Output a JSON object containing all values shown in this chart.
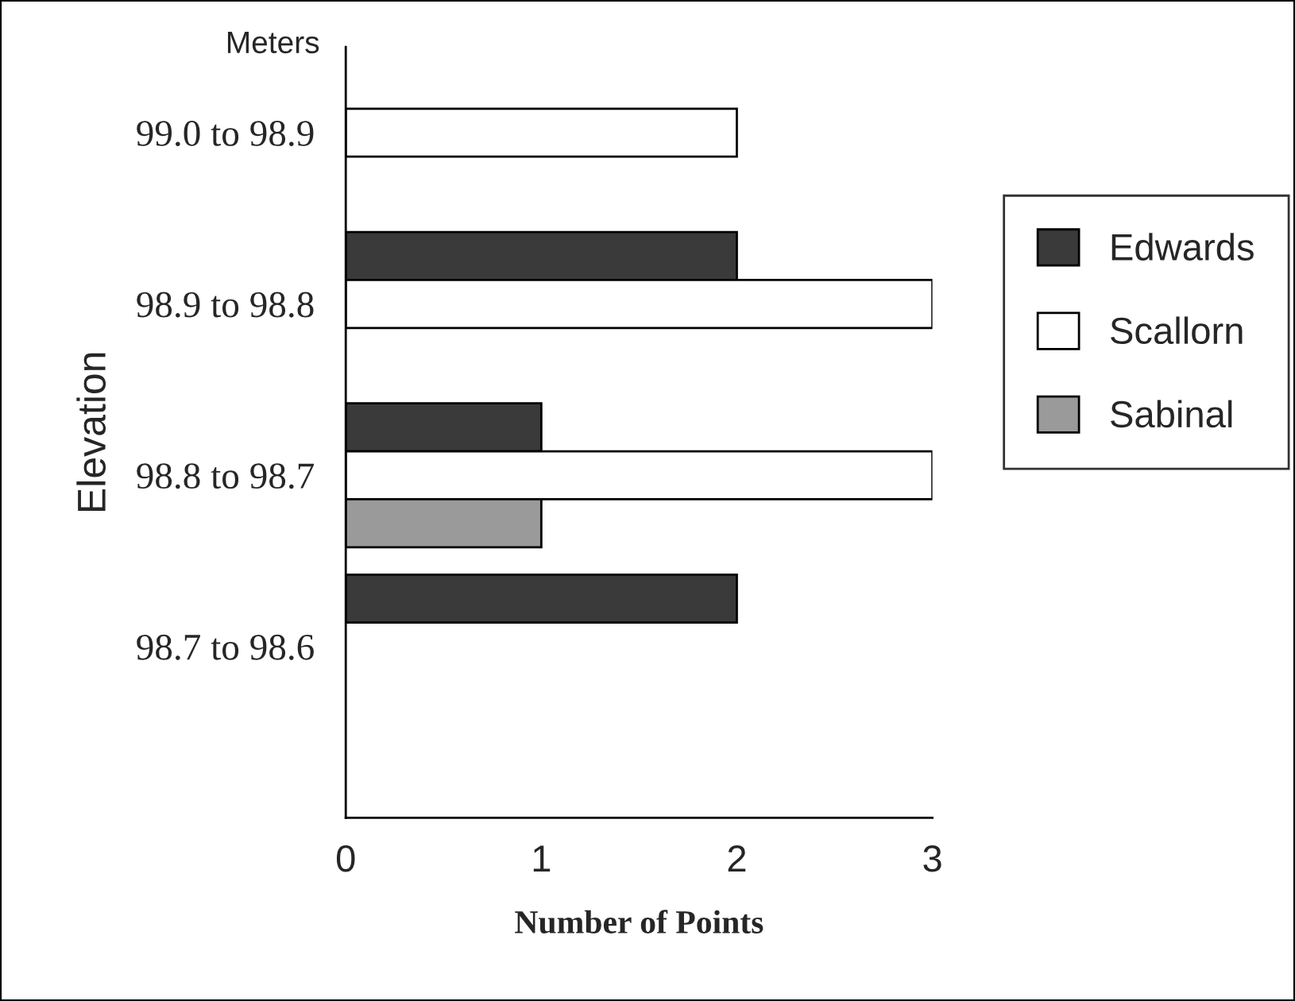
{
  "chart_data": {
    "type": "bar",
    "orientation": "horizontal",
    "xlabel": "Number of Points",
    "ylabel": "Elevation",
    "annotations": [
      "Meters"
    ],
    "categories": [
      "99.0 to 98.9",
      "98.9 to 98.8",
      "98.8 to 98.7",
      "98.7 to 98.6"
    ],
    "series": [
      {
        "name": "Edwards",
        "color": "#3a3a3a",
        "values": [
          null,
          2,
          1,
          2
        ]
      },
      {
        "name": "Scallorn",
        "color": "#ffffff",
        "values": [
          2,
          3,
          3,
          null
        ]
      },
      {
        "name": "Sabinal",
        "color": "#9a9a9a",
        "values": [
          null,
          null,
          1,
          null
        ]
      }
    ],
    "xlim": [
      0,
      3
    ],
    "xticks": [
      0,
      1,
      2,
      3
    ],
    "grid": false,
    "legend": "right"
  }
}
